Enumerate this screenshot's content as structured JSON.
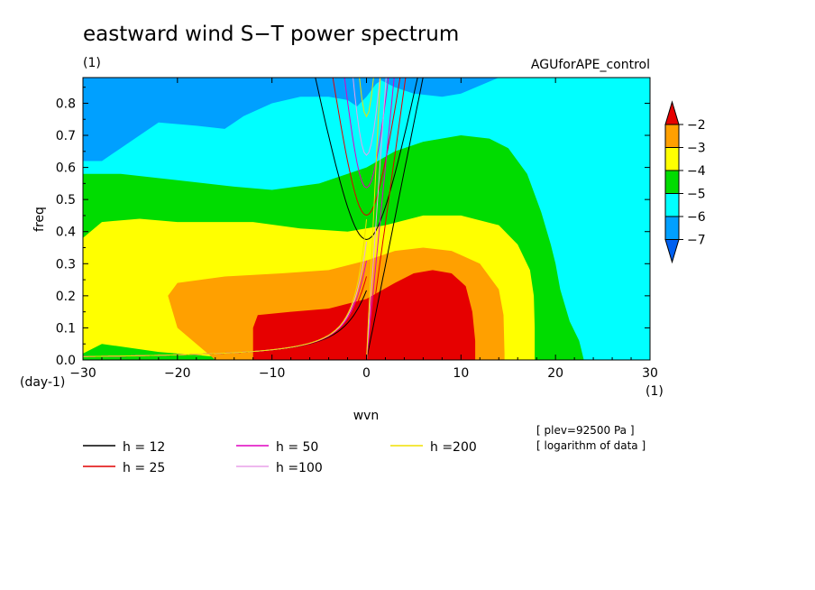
{
  "chart_data": {
    "type": "heatmap",
    "title": "eastward wind S−T power spectrum",
    "subtitle_left": "(1)",
    "subtitle_right": "AGUforAPE_control",
    "xlabel": "wvn",
    "ylabel": "freq",
    "x_unit": "(1)",
    "y_unit": "(day-1)",
    "xlim": [
      -30,
      30
    ],
    "ylim": [
      0,
      0.88
    ],
    "x_ticks": [
      -30,
      -20,
      -10,
      0,
      10,
      20,
      30
    ],
    "x_tick_labels": [
      "−30",
      "−20",
      "−10",
      "0",
      "10",
      "20",
      "30"
    ],
    "y_ticks": [
      0,
      0.1,
      0.2,
      0.3,
      0.4,
      0.5,
      0.6,
      0.7,
      0.8
    ],
    "y_tick_labels": [
      "0.0",
      "0.1",
      "0.2",
      "0.3",
      "0.4",
      "0.5",
      "0.6",
      "0.7",
      "0.8"
    ],
    "colorbar": {
      "levels": [
        -2,
        -3,
        -4,
        -5,
        -6,
        -7
      ],
      "labels": [
        "−2",
        "−3",
        "−4",
        "−5",
        "−6",
        "−7"
      ],
      "colors": [
        "#e60000",
        "#ffa000",
        "#ffff00",
        "#00dc00",
        "#00ffff",
        "#00a0ff",
        "#0060f0"
      ]
    },
    "dispersion_curves": [
      {
        "label": "h = 12",
        "h": 12,
        "color": "#000000"
      },
      {
        "label": "h = 25",
        "h": 25,
        "color": "#e00000"
      },
      {
        "label": "h = 50",
        "h": 50,
        "color": "#e000c0"
      },
      {
        "label": "h =100",
        "h": 100,
        "color": "#e8a0e8"
      },
      {
        "label": "h =200",
        "h": 200,
        "color": "#f0e000"
      }
    ],
    "notes": [
      "[ plev=92500 Pa ]",
      "[ logarithm of data ]"
    ]
  }
}
